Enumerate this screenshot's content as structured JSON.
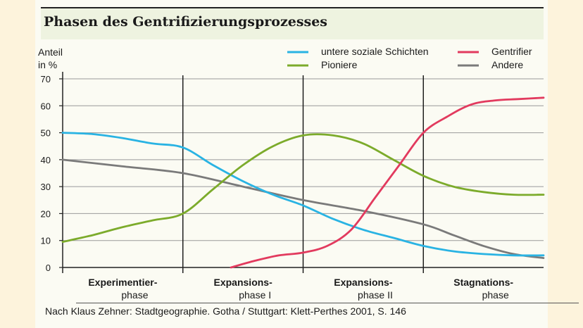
{
  "title": "Phasen des Gentrifizierungsprozesses",
  "source": "Nach Klaus Zehner: Stadtgeographie. Gotha / Stuttgart: Klett-Perthes 2001, S. 146",
  "chart_data": {
    "type": "line",
    "title": "Phasen des Gentrifizierungsprozesses",
    "ylabel_line1": "Anteil",
    "ylabel_line2": "in %",
    "ylim": [
      0,
      70
    ],
    "yticks": [
      0,
      10,
      20,
      30,
      40,
      50,
      60,
      70
    ],
    "xlim": [
      0,
      4
    ],
    "grid": "horizontal",
    "legend_position": "top",
    "phase_boundaries": [
      1,
      3,
      5
    ],
    "phase_boundaries_x": [
      1,
      2,
      3
    ],
    "phases": [
      {
        "line1": "Experimentier-",
        "line2": "phase",
        "bold_first": true
      },
      {
        "line1": "Expansions-",
        "line2": "phase I",
        "bold_first": true
      },
      {
        "line1": "Expansions-",
        "line2": "phase II",
        "bold_first": true
      },
      {
        "line1": "Stagnations-",
        "line2": "phase",
        "bold_first": true
      }
    ],
    "series": [
      {
        "name": "untere soziale Schichten",
        "color": "#29b3e3",
        "x": [
          0,
          0.25,
          0.5,
          0.75,
          1.0,
          1.25,
          1.5,
          1.75,
          2.0,
          2.25,
          2.5,
          2.75,
          3.0,
          3.25,
          3.5,
          3.75,
          4.0
        ],
        "y": [
          50,
          49.5,
          48,
          46,
          44.5,
          38,
          32,
          27,
          23,
          18,
          14,
          11,
          8,
          6,
          5,
          4.5,
          4.5
        ]
      },
      {
        "name": "Gentrifier",
        "color": "#e23a5e",
        "x": [
          1.4,
          1.6,
          1.8,
          2.0,
          2.2,
          2.4,
          2.6,
          2.8,
          3.0,
          3.2,
          3.4,
          3.6,
          3.8,
          4.0
        ],
        "y": [
          0,
          2.5,
          4.5,
          5.5,
          8,
          14,
          26,
          38,
          50,
          56,
          60.5,
          62,
          62.5,
          63
        ]
      },
      {
        "name": "Pioniere",
        "color": "#7cab2b",
        "x": [
          0,
          0.25,
          0.5,
          0.75,
          1.0,
          1.25,
          1.5,
          1.75,
          2.0,
          2.25,
          2.5,
          2.75,
          3.0,
          3.25,
          3.5,
          3.75,
          4.0
        ],
        "y": [
          9.5,
          12,
          15,
          17.5,
          20,
          29,
          38,
          45,
          49,
          49,
          46,
          40,
          34,
          30,
          28,
          27,
          27
        ]
      },
      {
        "name": "Andere",
        "color": "#7a7a7a",
        "x": [
          0,
          0.5,
          1.0,
          1.5,
          2.0,
          2.5,
          3.0,
          3.25,
          3.5,
          3.75,
          4.0
        ],
        "y": [
          40,
          37.5,
          35,
          30,
          25,
          21,
          16,
          12,
          8,
          5,
          3.5
        ]
      }
    ]
  }
}
